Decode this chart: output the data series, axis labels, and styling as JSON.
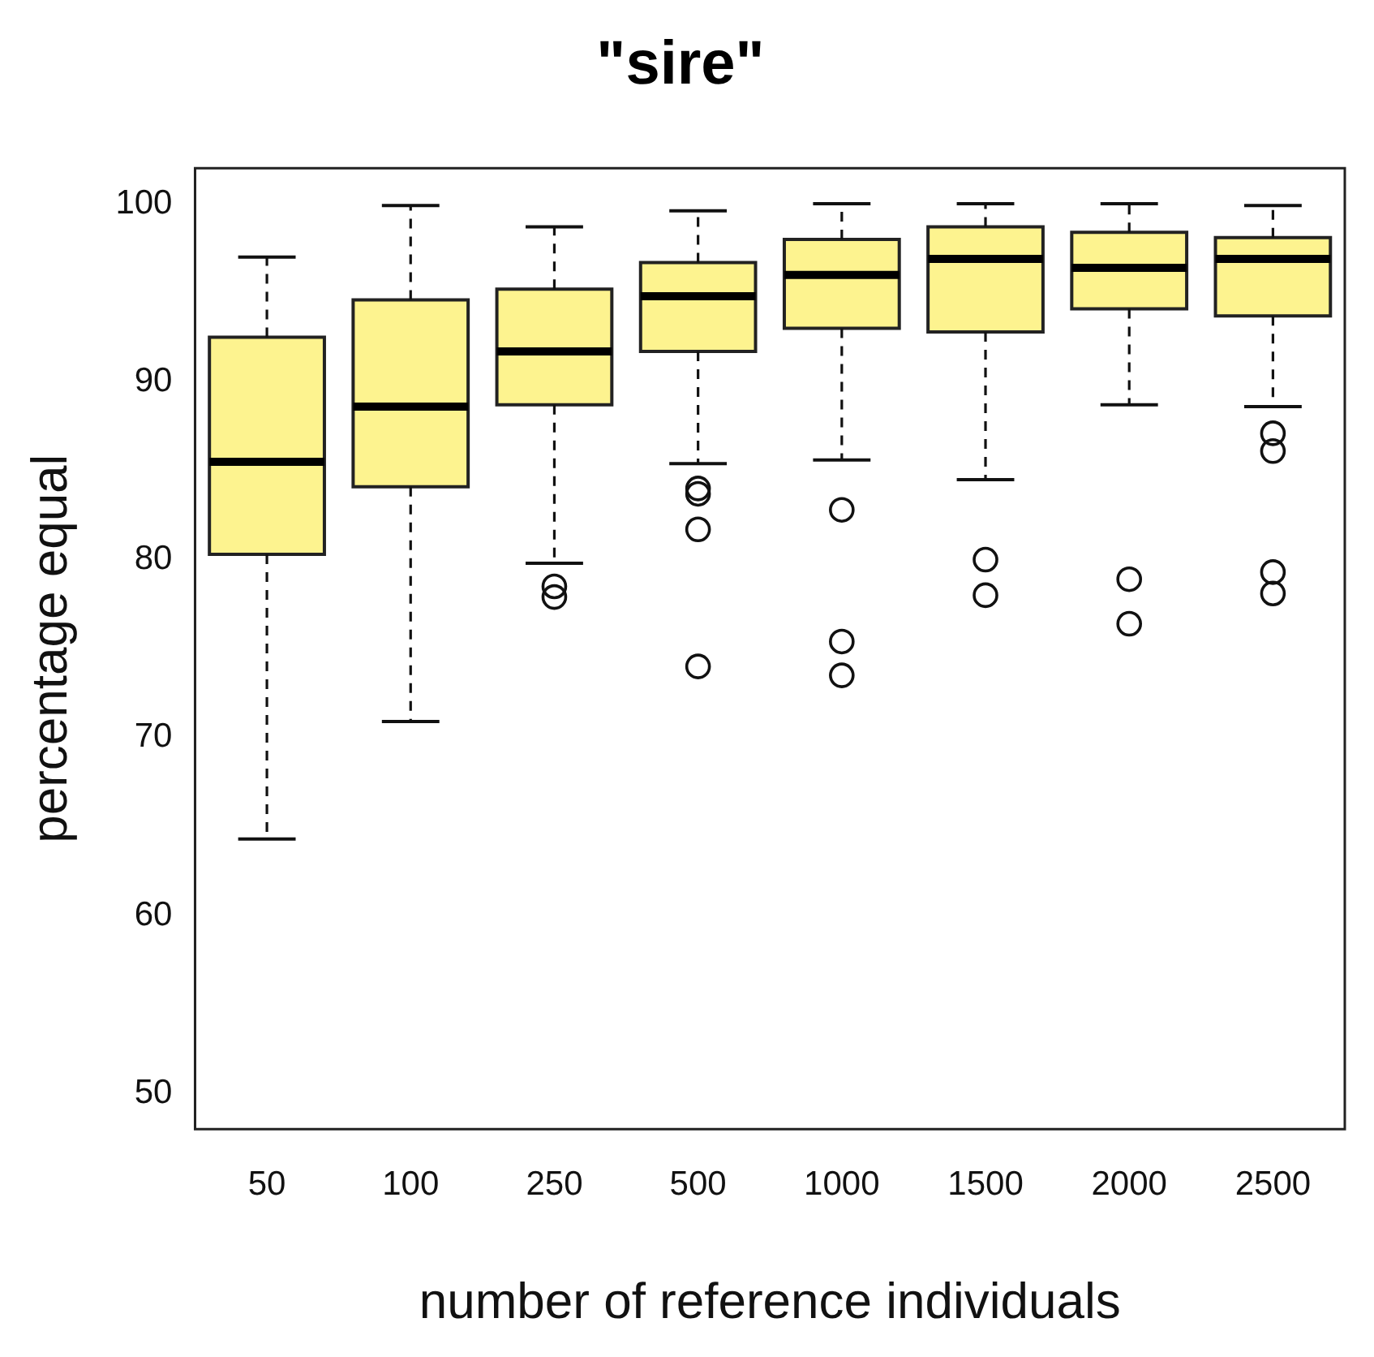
{
  "chart_data": {
    "type": "box",
    "title": "\"sire\"",
    "xlabel": "number of reference individuals",
    "ylabel": "percentage equal",
    "color": "#fdf38f",
    "categories": [
      "50",
      "100",
      "250",
      "500",
      "1000",
      "1500",
      "2000",
      "2500"
    ],
    "boxes": [
      {
        "low": 64.3,
        "q1": 80.3,
        "median": 85.5,
        "q3": 92.5,
        "high": 97.0
      },
      {
        "low": 70.9,
        "q1": 84.1,
        "median": 88.6,
        "q3": 94.6,
        "high": 99.9
      },
      {
        "low": 79.8,
        "q1": 88.7,
        "median": 91.7,
        "q3": 95.2,
        "high": 98.7,
        "outliers": [
          78.5,
          77.9
        ]
      },
      {
        "low": 85.4,
        "q1": 91.7,
        "median": 94.8,
        "q3": 96.7,
        "high": 99.6,
        "outliers": [
          84.0,
          83.7,
          81.7,
          74.0
        ]
      },
      {
        "low": 85.6,
        "q1": 93.0,
        "median": 96.0,
        "q3": 98.0,
        "high": 100.0,
        "outliers": [
          82.8,
          75.4,
          73.5
        ]
      },
      {
        "low": 84.5,
        "q1": 92.8,
        "median": 96.9,
        "q3": 98.7,
        "high": 100.0,
        "outliers": [
          80.0,
          78.0
        ]
      },
      {
        "low": 88.7,
        "q1": 94.1,
        "median": 96.4,
        "q3": 98.4,
        "high": 100.0,
        "outliers": [
          78.9,
          76.4
        ]
      },
      {
        "low": 88.6,
        "q1": 93.7,
        "median": 96.9,
        "q3": 98.1,
        "high": 99.9,
        "outliers": [
          87.1,
          86.1,
          79.3,
          78.1
        ]
      }
    ],
    "ylim": [
      48,
      102
    ],
    "yticks": [
      50,
      60,
      70,
      80,
      90,
      100
    ]
  }
}
